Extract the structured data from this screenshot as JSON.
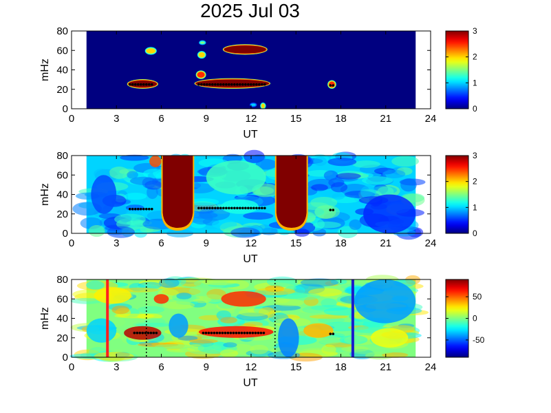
{
  "figure": {
    "title": "2025 Jul 03"
  },
  "palette": {
    "jet_dark_blue": "#00008f",
    "jet_blue": "#0000ff",
    "jet_cyan": "#00ffff",
    "jet_yellow": "#ffff00",
    "jet_red": "#ff0000",
    "jet_dark_red": "#800000",
    "marker_black": "#000000",
    "line_red": "#ff2020",
    "line_blue": "#1a1acc"
  },
  "chart_data": [
    {
      "type": "heatmap",
      "panel": "top",
      "xlabel": "UT",
      "ylabel": "mHz",
      "xlim": [
        0,
        24
      ],
      "ylim": [
        0,
        80
      ],
      "xticks": [
        "0",
        "3",
        "6",
        "9",
        "12",
        "15",
        "18",
        "21",
        "24"
      ],
      "yticks": [
        "0",
        "20",
        "40",
        "60",
        "80"
      ],
      "data_range_ut": [
        1,
        23
      ],
      "background_value": 0,
      "colorbar": {
        "min": 0,
        "max": 3,
        "ticks": [
          "0",
          "1",
          "2",
          "3"
        ]
      },
      "blobs": [
        {
          "ut": [
            3.8,
            5.7
          ],
          "mhz": [
            22,
            29
          ],
          "value": 3
        },
        {
          "ut": [
            8.3,
            13.2
          ],
          "mhz": [
            22,
            30
          ],
          "value": 3
        },
        {
          "ut": [
            10.2,
            13.0
          ],
          "mhz": [
            57,
            65
          ],
          "value": 3
        },
        {
          "ut": [
            8.4,
            8.9
          ],
          "mhz": [
            32,
            38
          ],
          "value": 2.5
        },
        {
          "ut": [
            5.0,
            5.6
          ],
          "mhz": [
            57,
            62
          ],
          "value": 2
        },
        {
          "ut": [
            8.5,
            8.9
          ],
          "mhz": [
            53,
            58
          ],
          "value": 2
        },
        {
          "ut": [
            8.6,
            8.9
          ],
          "mhz": [
            67,
            69
          ],
          "value": 1.5
        },
        {
          "ut": [
            12.7,
            12.9
          ],
          "mhz": [
            1,
            5
          ],
          "value": 2
        },
        {
          "ut": [
            12.0,
            12.3
          ],
          "mhz": [
            3,
            5
          ],
          "value": 1
        },
        {
          "ut": [
            17.2,
            17.6
          ],
          "mhz": [
            22,
            28
          ],
          "value": 2.5
        }
      ],
      "markers": [
        {
          "ut": [
            3.9,
            5.4
          ],
          "mhz": 25
        },
        {
          "ut": [
            8.5,
            13.0
          ],
          "mhz": 25
        },
        {
          "ut": [
            17.3,
            17.5
          ],
          "mhz": 24
        }
      ]
    },
    {
      "type": "heatmap",
      "panel": "middle",
      "xlabel": "UT",
      "ylabel": "mHz",
      "xlim": [
        0,
        24
      ],
      "ylim": [
        0,
        80
      ],
      "xticks": [
        "0",
        "3",
        "6",
        "9",
        "12",
        "15",
        "18",
        "21",
        "24"
      ],
      "yticks": [
        "0",
        "20",
        "40",
        "60",
        "80"
      ],
      "data_range_ut": [
        1,
        23
      ],
      "background_value": 1,
      "colorbar": {
        "min": 0,
        "max": 3,
        "ticks": [
          "0",
          "1",
          "2",
          "3"
        ]
      },
      "saturated_bands": [
        {
          "ut": [
            6.0,
            8.2
          ],
          "value": 3
        },
        {
          "ut": [
            13.6,
            15.8
          ],
          "value": 3
        }
      ],
      "blobs": [
        {
          "ut": [
            5.2,
            6.0
          ],
          "mhz": [
            68,
            80
          ],
          "value": 2.4
        },
        {
          "ut": [
            1.3,
            3.0
          ],
          "mhz": [
            20,
            60
          ],
          "value": 0.6
        },
        {
          "ut": [
            9.0,
            13.0
          ],
          "mhz": [
            40,
            75
          ],
          "value": 1.3
        },
        {
          "ut": [
            19.5,
            23.0
          ],
          "mhz": [
            0,
            40
          ],
          "value": 0.5
        },
        {
          "ut": [
            10.0,
            12.5
          ],
          "mhz": [
            20,
            35
          ],
          "value": 1.2
        }
      ],
      "markers": [
        {
          "ut": [
            3.9,
            5.4
          ],
          "mhz": 25
        },
        {
          "ut": [
            8.5,
            13.0
          ],
          "mhz": 26
        },
        {
          "ut": [
            17.3,
            17.5
          ],
          "mhz": 24
        }
      ]
    },
    {
      "type": "heatmap",
      "panel": "bottom",
      "xlabel": "UT",
      "ylabel": "mHz",
      "xlim": [
        0,
        24
      ],
      "ylim": [
        0,
        80
      ],
      "xticks": [
        "0",
        "3",
        "6",
        "9",
        "12",
        "15",
        "18",
        "21",
        "24"
      ],
      "yticks": [
        "0",
        "20",
        "40",
        "60",
        "80"
      ],
      "data_range_ut": [
        1,
        23
      ],
      "background_value": 0,
      "colorbar": {
        "min": -90,
        "max": 90,
        "ticks": [
          "50",
          "0",
          "-50"
        ],
        "tick_values": [
          50,
          0,
          -50
        ]
      },
      "blobs": [
        {
          "ut": [
            3.5,
            6.0
          ],
          "mhz": [
            18,
            32
          ],
          "value": 80
        },
        {
          "ut": [
            8.5,
            13.5
          ],
          "mhz": [
            20,
            32
          ],
          "value": 65
        },
        {
          "ut": [
            10.0,
            13.0
          ],
          "mhz": [
            52,
            68
          ],
          "value": 60
        },
        {
          "ut": [
            5.5,
            6.5
          ],
          "mhz": [
            55,
            65
          ],
          "value": 60
        },
        {
          "ut": [
            1.0,
            3.0
          ],
          "mhz": [
            15,
            40
          ],
          "value": -30
        },
        {
          "ut": [
            6.5,
            7.8
          ],
          "mhz": [
            20,
            45
          ],
          "value": -40
        },
        {
          "ut": [
            13.8,
            15.2
          ],
          "mhz": [
            0,
            40
          ],
          "value": -45
        },
        {
          "ut": [
            18.9,
            23.0
          ],
          "mhz": [
            35,
            80
          ],
          "value": -40
        },
        {
          "ut": [
            20.0,
            22.5
          ],
          "mhz": [
            10,
            30
          ],
          "value": 20
        },
        {
          "ut": [
            15.5,
            17.5
          ],
          "mhz": [
            20,
            35
          ],
          "value": 35
        },
        {
          "ut": [
            1.5,
            4.0
          ],
          "mhz": [
            55,
            72
          ],
          "value": 25
        }
      ],
      "vertical_lines": [
        {
          "ut": 2.4,
          "color": "red"
        },
        {
          "ut": 18.8,
          "color": "blue"
        }
      ],
      "dotted_lines": [
        5.0,
        13.6
      ],
      "markers": [
        {
          "ut": [
            4.2,
            5.7
          ],
          "mhz": 25
        },
        {
          "ut": [
            8.8,
            13.0
          ],
          "mhz": 25
        },
        {
          "ut": [
            17.3,
            17.5
          ],
          "mhz": 24
        }
      ]
    }
  ]
}
